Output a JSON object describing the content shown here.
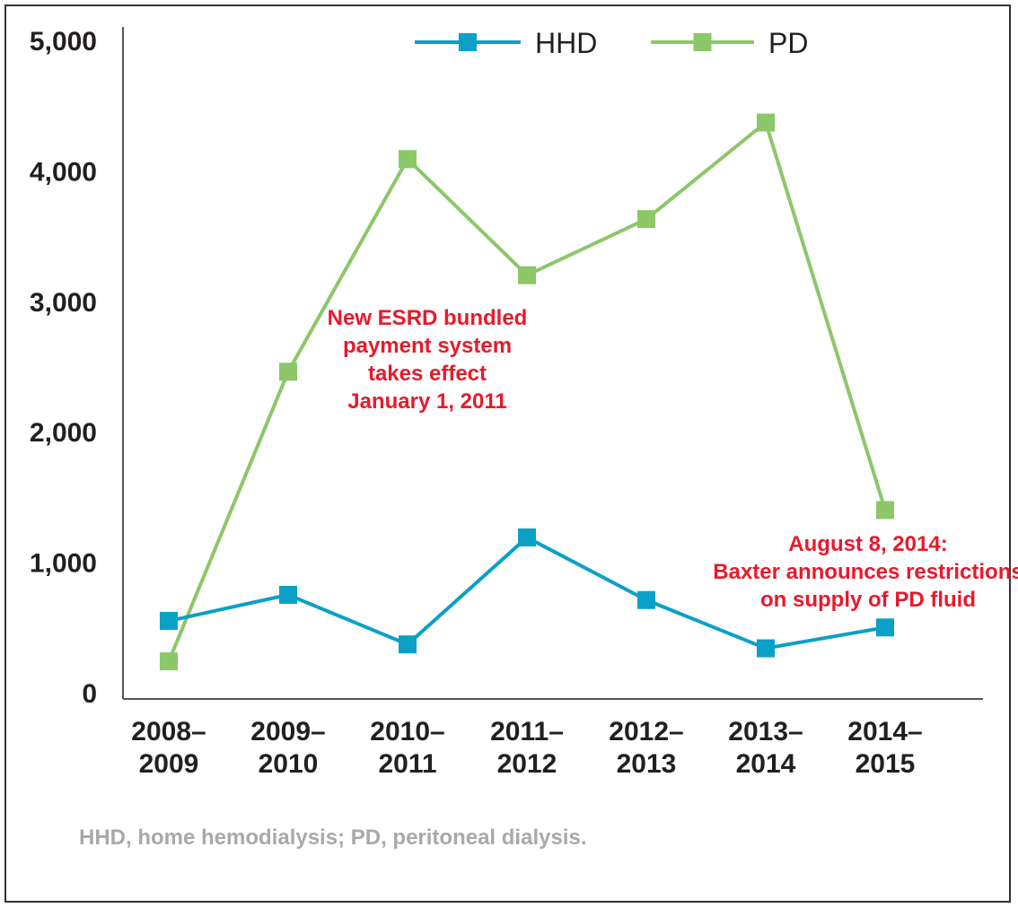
{
  "chart_data": {
    "type": "line",
    "categories": [
      [
        "2008–",
        "2009"
      ],
      [
        "2009–",
        "2010"
      ],
      [
        "2010–",
        "2011"
      ],
      [
        "2011–",
        "2012"
      ],
      [
        "2012–",
        "2013"
      ],
      [
        "2013–",
        "2014"
      ],
      [
        "2014–",
        "2015"
      ]
    ],
    "series": [
      {
        "name": "HHD",
        "color": "#0aa0c8",
        "values": [
          550,
          750,
          370,
          1190,
          710,
          340,
          500
        ]
      },
      {
        "name": "PD",
        "color": "#8cc768",
        "values": [
          240,
          2460,
          4090,
          3200,
          3630,
          4370,
          1400
        ]
      }
    ],
    "ylim": [
      0,
      5000
    ],
    "yticks": [
      0,
      1000,
      2000,
      3000,
      4000,
      5000
    ],
    "ytick_labels": [
      "0",
      "1,000",
      "2,000",
      "3,000",
      "4,000",
      "5,000"
    ],
    "grid": false,
    "legend_position": "top",
    "annotations": [
      {
        "lines": [
          "New ESRD bundled",
          "payment system",
          "takes effect",
          "January 1, 2011"
        ],
        "color": "#e8192c"
      },
      {
        "lines": [
          "August 8, 2014:",
          "Baxter announces restrictions",
          "on supply of PD fluid"
        ],
        "color": "#e8192c"
      }
    ]
  },
  "footnote": "HHD, home hemodialysis; PD, peritoneal dialysis."
}
